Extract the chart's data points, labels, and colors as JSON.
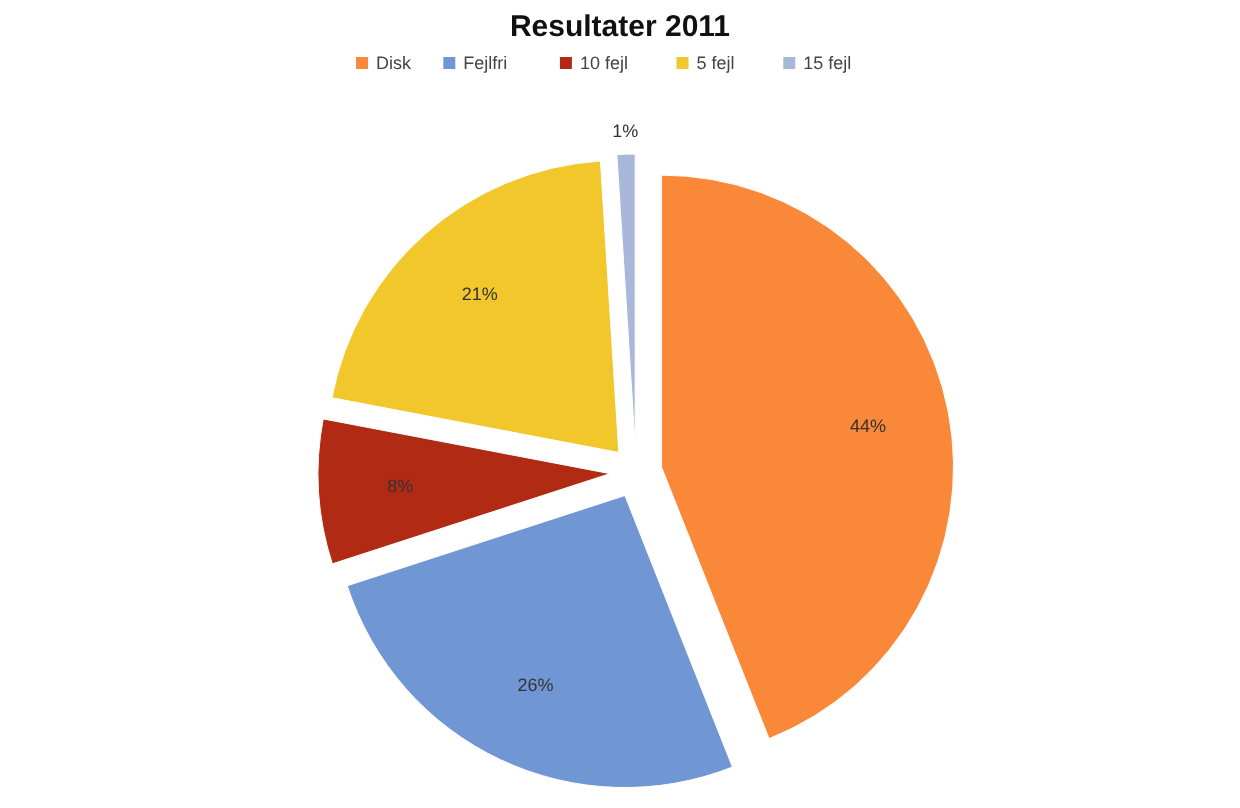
{
  "chart_data": {
    "type": "pie",
    "title": "Resultater 2011",
    "categories": [
      "Disk",
      "Fejlfri",
      "10 fejl",
      "5 fejl",
      "15 fejl"
    ],
    "values": [
      44,
      26,
      8,
      21,
      1
    ],
    "value_labels": [
      "44%",
      "26%",
      "8%",
      "21%",
      "1%"
    ],
    "colors": [
      "#f98838",
      "#7096d4",
      "#b02a14",
      "#f2c72c",
      "#a9b8da"
    ],
    "legend": "top"
  }
}
